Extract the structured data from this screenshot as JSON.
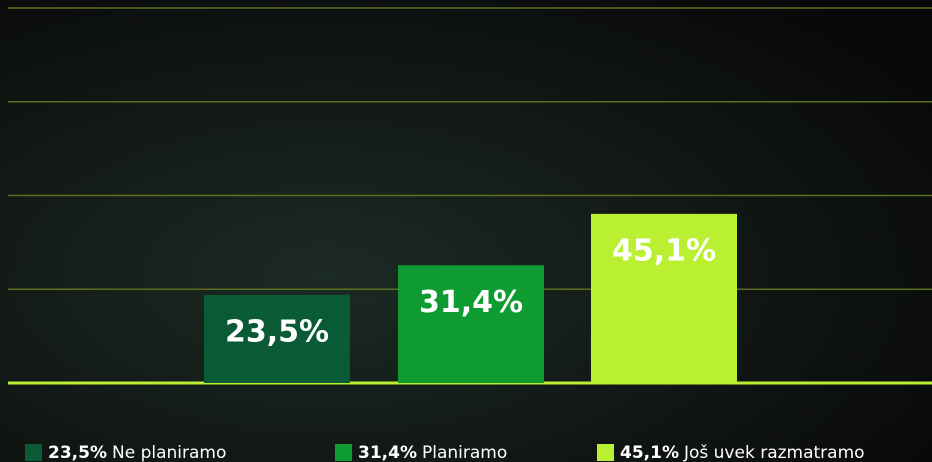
{
  "chart_data": {
    "type": "bar",
    "categories": [
      "Ne planiramo",
      "Planiramo",
      "Još uvek razmatramo"
    ],
    "values": [
      23.5,
      31.4,
      45.1
    ],
    "value_labels": [
      "23,5%",
      "31,4%",
      "45,1%"
    ],
    "colors": [
      "#0b5a36",
      "#0d9b32",
      "#baf032"
    ],
    "ylim": [
      0,
      100
    ],
    "yticks": [
      0,
      25,
      50,
      75,
      100
    ],
    "grid": true,
    "legend": "bottom"
  }
}
